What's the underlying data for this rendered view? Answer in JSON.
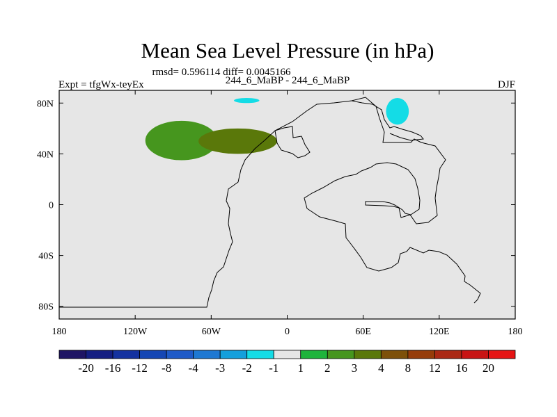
{
  "chart_data": {
    "type": "heatmap",
    "title": "Mean Sea Level Pressure (in hPa)",
    "stats_text": "rmsd= 0.596114 diff= 0.0045166",
    "comparison": "244_6_MaBP - 244_6_MaBP",
    "experiment": "Expt = tfgWx-teyEx",
    "season": "DJF",
    "xlim": [
      -180,
      180
    ],
    "ylim": [
      -90,
      90
    ],
    "x_ticks": [
      {
        "value": -180,
        "label": "180"
      },
      {
        "value": -120,
        "label": "120W"
      },
      {
        "value": -60,
        "label": "60W"
      },
      {
        "value": 0,
        "label": "0"
      },
      {
        "value": 60,
        "label": "60E"
      },
      {
        "value": 120,
        "label": "120E"
      },
      {
        "value": 180,
        "label": "180"
      }
    ],
    "y_ticks": [
      {
        "value": 80,
        "label": "80N"
      },
      {
        "value": 40,
        "label": "40N"
      },
      {
        "value": 0,
        "label": "0"
      },
      {
        "value": -40,
        "label": "40S"
      },
      {
        "value": -80,
        "label": "80S"
      }
    ],
    "colorbar": {
      "levels": [
        "-20",
        "-16",
        "-12",
        "-8",
        "-4",
        "-3",
        "-2",
        "-1",
        "1",
        "2",
        "3",
        "4",
        "8",
        "12",
        "16",
        "20"
      ],
      "colors": [
        "#1e1464",
        "#141e82",
        "#1432a0",
        "#1446b4",
        "#1e5ac8",
        "#1e78d2",
        "#14a0dc",
        "#14dce6",
        "#e6e6e6",
        "#1eb43c",
        "#46961e",
        "#5a780a",
        "#7d500a",
        "#963c0a",
        "#aa2814",
        "#c81414",
        "#e61414"
      ]
    },
    "background_color": "#e6e6e6",
    "anomaly_regions": [
      {
        "name": "anomaly-region-north-pacific-green",
        "value": 2,
        "center": [
          -80,
          50
        ],
        "extent": [
          -112,
          -55,
          35,
          66
        ]
      },
      {
        "name": "anomaly-region-north-pacific-olive",
        "value": 3,
        "center": [
          -35,
          50
        ],
        "extent": [
          -70,
          -8,
          40,
          60
        ]
      },
      {
        "name": "anomaly-region-arctic-east-cyan",
        "value": -1,
        "center": [
          -35,
          80
        ],
        "extent": [
          -70,
          -10,
          72,
          88
        ]
      },
      {
        "name": "anomaly-region-arctic-east-blue",
        "value": -2,
        "center": [
          -32,
          82
        ],
        "extent": [
          -42,
          -22,
          80,
          84
        ]
      },
      {
        "name": "anomaly-region-pacific-small-cyan",
        "value": -1,
        "center": [
          -125,
          66
        ],
        "extent": [
          -135,
          -115,
          62,
          70
        ]
      },
      {
        "name": "anomaly-region-northeast-cyan",
        "value": -1,
        "center": [
          90,
          70
        ],
        "extent": [
          65,
          160,
          50,
          90
        ]
      },
      {
        "name": "anomaly-region-northeast-blue",
        "value": -2,
        "center": [
          85,
          73
        ],
        "extent": [
          78,
          96,
          63,
          84
        ]
      },
      {
        "name": "anomaly-region-southern-ocean-cyan",
        "value": -1,
        "center": [
          120,
          -35
        ],
        "extent": [
          100,
          160,
          -40,
          -27
        ]
      },
      {
        "name": "anomaly-region-southeast-pacific-cyan",
        "value": -1,
        "center": [
          150,
          -77
        ],
        "extent": [
          110,
          180,
          -90,
          -65
        ]
      },
      {
        "name": "anomaly-region-southwest-edge-cyan",
        "value": -1,
        "center": [
          -170,
          -75
        ],
        "extent": [
          -180,
          -160,
          -78,
          -72
        ]
      },
      {
        "name": "anomaly-region-south-atlantic-cyan",
        "value": -1,
        "center": [
          58,
          -80
        ],
        "extent": [
          36,
          78,
          -84,
          -76
        ]
      },
      {
        "name": "anomaly-region-small-dot-cyan",
        "value": -1,
        "center": [
          24,
          -80
        ],
        "extent": [
          22,
          26,
          -82,
          -78
        ]
      }
    ]
  }
}
